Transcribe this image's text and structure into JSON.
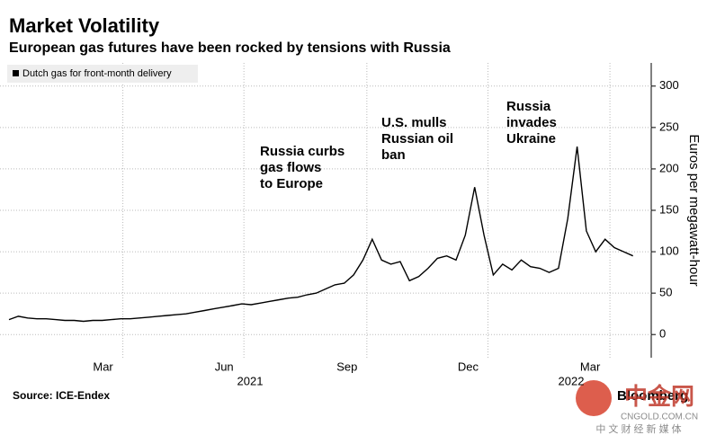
{
  "chart_data": {
    "type": "line",
    "title": "Market Volatility",
    "subtitle": "European gas futures have been rocked by tensions with Russia",
    "y_axis_label": "Euros per megawatt-hour",
    "source": "Source: ICE-Endex",
    "brand": "Bloomberg",
    "series": [
      {
        "name": "Dutch gas for front-month delivery",
        "color": "#000000",
        "values": [
          18,
          22,
          20,
          19,
          19,
          18,
          17,
          17,
          16,
          17,
          17,
          18,
          19,
          19,
          20,
          21,
          22,
          23,
          24,
          25,
          27,
          29,
          31,
          33,
          35,
          37,
          36,
          38,
          40,
          42,
          44,
          45,
          48,
          50,
          55,
          60,
          62,
          72,
          90,
          115,
          90,
          85,
          88,
          65,
          70,
          80,
          92,
          95,
          90,
          120,
          178,
          120,
          72,
          85,
          78,
          90,
          82,
          80,
          75,
          80,
          140,
          227,
          125,
          100,
          115,
          105,
          100,
          95
        ]
      }
    ],
    "xlim": [
      0,
      67.8
    ],
    "xticks": [
      {
        "value": 10.1,
        "label": "Mar"
      },
      {
        "value": 23.1,
        "label": "Jun"
      },
      {
        "value": 36.3,
        "label": "Sep"
      },
      {
        "value": 49.3,
        "label": "Dec"
      },
      {
        "value": 62.4,
        "label": "Mar"
      }
    ],
    "year_labels": [
      "2021",
      "2022"
    ],
    "ylim": [
      -28,
      328
    ],
    "yticks": [
      0,
      50,
      100,
      150,
      200,
      250,
      300
    ],
    "grid": true,
    "annotations": [
      [
        "Russia curbs",
        "gas flows",
        "to Europe"
      ],
      [
        "U.S. mulls",
        "Russian oil",
        "ban"
      ],
      [
        "Russia",
        "invades",
        "Ukraine"
      ]
    ]
  },
  "watermark": {
    "name": "中金网",
    "url": "CNGOLD.COM.CN",
    "tagline": "中 文 财 经 新 媒 体"
  }
}
